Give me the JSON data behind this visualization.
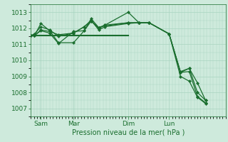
{
  "bg_color": "#ceeadc",
  "grid_color": "#a8d4c0",
  "line_color": "#1a6e2e",
  "text_color": "#1a6e2e",
  "xlabel": "Pression niveau de la mer( hPa )",
  "ylim": [
    1006.5,
    1013.5
  ],
  "yticks": [
    1007,
    1008,
    1009,
    1010,
    1011,
    1012,
    1013
  ],
  "xtick_labels": [
    "Sam",
    "Mar",
    "Dim",
    "Lun"
  ],
  "xtick_positions": [
    16,
    68,
    155,
    220
  ],
  "xlim": [
    0,
    310
  ],
  "line1_x": [
    0,
    6,
    16,
    30,
    44,
    68,
    85,
    96,
    108,
    118,
    155,
    172,
    188,
    220,
    238,
    252,
    265,
    278
  ],
  "line1_y": [
    1011.55,
    1011.55,
    1012.3,
    1011.85,
    1011.1,
    1011.1,
    1011.85,
    1012.6,
    1012.05,
    1012.2,
    1013.0,
    1012.35,
    1012.35,
    1011.65,
    1009.3,
    1009.5,
    1008.6,
    1007.5
  ],
  "line2_x": [
    0,
    6,
    16,
    30,
    44,
    68,
    85,
    96,
    108,
    118,
    155,
    172,
    188,
    220,
    238,
    252,
    265,
    278
  ],
  "line2_y": [
    1011.55,
    1011.65,
    1012.1,
    1011.9,
    1011.5,
    1011.7,
    1012.1,
    1012.5,
    1011.9,
    1012.1,
    1012.3,
    1012.35,
    1012.35,
    1011.65,
    1009.0,
    1008.7,
    1007.7,
    1007.3
  ],
  "line3_x": [
    0,
    155
  ],
  "line3_y": [
    1011.55,
    1011.55
  ],
  "line4_x": [
    0,
    6,
    16,
    30,
    44,
    68,
    85,
    96,
    108,
    118,
    155,
    172,
    188,
    220,
    238,
    252,
    265,
    278
  ],
  "line4_y": [
    1011.55,
    1011.55,
    1011.85,
    1011.7,
    1011.05,
    1011.8,
    1011.85,
    1012.45,
    1012.0,
    1012.2,
    1012.35,
    1012.35,
    1012.35,
    1011.65,
    1009.25,
    1009.5,
    1008.0,
    1007.5
  ],
  "line5_x": [
    0,
    6,
    16,
    30,
    44,
    68,
    85,
    96,
    108,
    118,
    155,
    172,
    188,
    220,
    238,
    252,
    265,
    278
  ],
  "line5_y": [
    1011.55,
    1011.55,
    1011.9,
    1011.8,
    1011.6,
    1011.7,
    1012.1,
    1012.45,
    1012.05,
    1012.15,
    1012.35,
    1012.35,
    1012.35,
    1011.65,
    1009.25,
    1009.3,
    1007.75,
    1007.35
  ]
}
